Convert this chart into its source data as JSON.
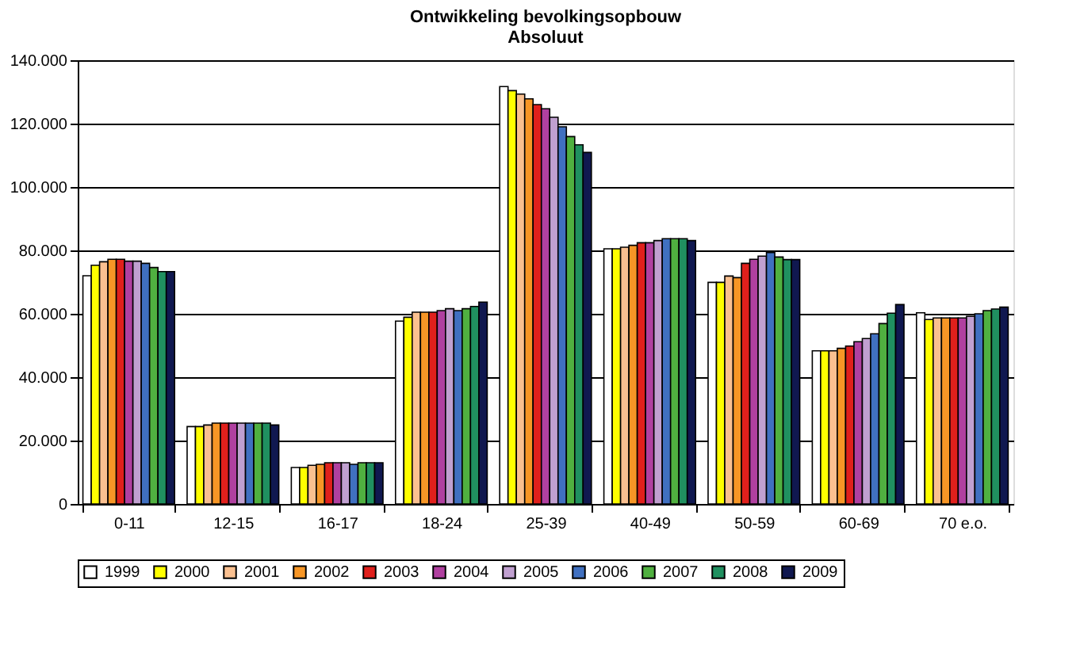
{
  "chart_data": {
    "type": "bar",
    "title": "Ontwikkeling bevolkingsopbouw",
    "subtitle": "Absoluut",
    "categories": [
      "0-11",
      "12-15",
      "16-17",
      "18-24",
      "25-39",
      "40-49",
      "50-59",
      "60-69",
      "70 e.o."
    ],
    "series": [
      {
        "name": "1999",
        "color": "#ffffff",
        "values": [
          72000,
          24400,
          11500,
          57700,
          131700,
          80500,
          69900,
          48300,
          60300
        ]
      },
      {
        "name": "2000",
        "color": "#ffff00",
        "values": [
          75300,
          24400,
          11500,
          58900,
          130400,
          80500,
          69900,
          48300,
          58200
        ]
      },
      {
        "name": "2001",
        "color": "#fac090",
        "values": [
          76400,
          24900,
          12200,
          60500,
          129300,
          81000,
          71900,
          48300,
          58700
        ]
      },
      {
        "name": "2002",
        "color": "#f79626",
        "values": [
          77200,
          25500,
          12500,
          60500,
          127800,
          81600,
          71400,
          49100,
          58700
        ]
      },
      {
        "name": "2003",
        "color": "#e0201c",
        "values": [
          77200,
          25500,
          13000,
          60500,
          126000,
          82400,
          75900,
          49800,
          58700
        ]
      },
      {
        "name": "2004",
        "color": "#b040a0",
        "values": [
          76600,
          25500,
          13000,
          61000,
          124700,
          82400,
          77200,
          51200,
          58700
        ]
      },
      {
        "name": "2005",
        "color": "#c0a0d0",
        "values": [
          76600,
          25500,
          13000,
          61600,
          122000,
          83100,
          78200,
          52200,
          59200
        ]
      },
      {
        "name": "2006",
        "color": "#4070c0",
        "values": [
          75900,
          25500,
          12500,
          61000,
          119000,
          83700,
          79300,
          53700,
          60000
        ]
      },
      {
        "name": "2007",
        "color": "#50b040",
        "values": [
          74600,
          25500,
          13000,
          61600,
          115900,
          83700,
          77900,
          56900,
          61000
        ]
      },
      {
        "name": "2008",
        "color": "#209060",
        "values": [
          73300,
          25500,
          13000,
          62300,
          113300,
          83700,
          77100,
          60200,
          61500
        ]
      },
      {
        "name": "2009",
        "color": "#101850",
        "values": [
          73300,
          24900,
          13000,
          63700,
          110900,
          83100,
          77100,
          62900,
          62100
        ]
      }
    ],
    "ylim": [
      0,
      140000
    ],
    "yticks": [
      {
        "value": 0,
        "label": "0"
      },
      {
        "value": 20000,
        "label": "20.000"
      },
      {
        "value": 40000,
        "label": "40.000"
      },
      {
        "value": 60000,
        "label": "60.000"
      },
      {
        "value": 80000,
        "label": "80.000"
      },
      {
        "value": 100000,
        "label": "100.000"
      },
      {
        "value": 120000,
        "label": "120.000"
      },
      {
        "value": 140000,
        "label": "140.000"
      }
    ],
    "grid": "y",
    "legend": "bottom"
  }
}
